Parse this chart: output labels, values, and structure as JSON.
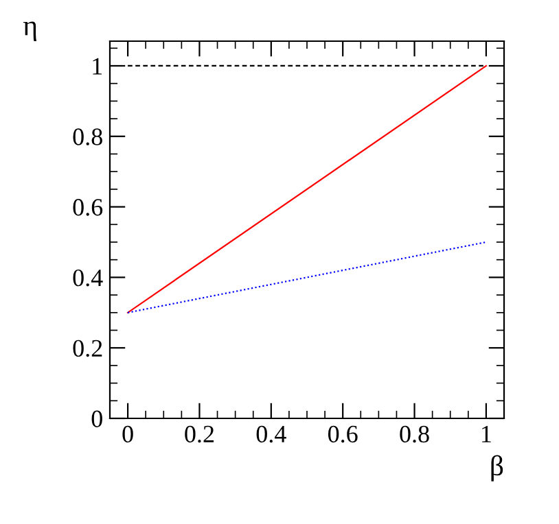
{
  "chart_data": {
    "type": "line",
    "xlabel": "β",
    "ylabel": "η",
    "xlim": [
      -0.05,
      1.05
    ],
    "ylim": [
      0,
      1.07
    ],
    "xticks": [
      0,
      0.2,
      0.4,
      0.6,
      0.8,
      1
    ],
    "yticks": [
      0,
      0.2,
      0.4,
      0.6,
      0.8,
      1
    ],
    "grid": false,
    "x": [
      0,
      1
    ],
    "series": [
      {
        "values": [
          0.3,
          1
        ],
        "color": "#ff0000",
        "line_style": "solid"
      },
      {
        "values": [
          0.3,
          0.5
        ],
        "color": "#0000ff",
        "line_style": "dotted"
      },
      {
        "values": [
          1,
          1
        ],
        "color": "#000000",
        "line_style": "dashed"
      }
    ]
  }
}
